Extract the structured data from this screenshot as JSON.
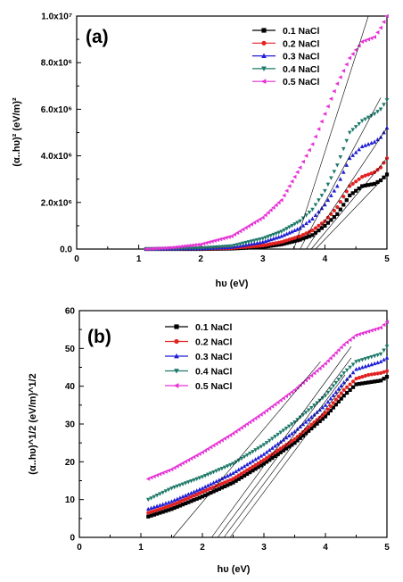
{
  "chart_data": [
    {
      "type": "scatter",
      "panel_label": "(a)",
      "xlabel": "hυ (eV)",
      "ylabel": "(α..hυ)² (eV/m)²",
      "xlim": [
        0,
        5
      ],
      "ylim": [
        0,
        10000000
      ],
      "x_ticks": [
        "0",
        "1",
        "2",
        "3",
        "4",
        "5"
      ],
      "y_ticks": [
        "0.0",
        "2.0x10⁶",
        "4.0x10⁶",
        "6.0x10⁶",
        "8.0x10⁶",
        "1.0x10⁷"
      ],
      "legend_position": "top-right",
      "grid": false,
      "series": [
        {
          "name": "0.1 NaCl",
          "color": "#000000",
          "marker": "square",
          "x": [
            1.12,
            2.0,
            2.5,
            3.0,
            3.3,
            3.6,
            3.8,
            4.0,
            4.2,
            4.4,
            4.6,
            4.8,
            4.9,
            5.0
          ],
          "y": [
            0,
            0,
            20000,
            90000,
            200000,
            400000,
            600000,
            1000000,
            1500000,
            2300000,
            2700000,
            2800000,
            2950000,
            3200000
          ]
        },
        {
          "name": "0.2 NaCl",
          "color": "#e32222",
          "marker": "circle",
          "x": [
            1.12,
            2.0,
            2.5,
            3.0,
            3.3,
            3.6,
            3.8,
            4.0,
            4.2,
            4.4,
            4.6,
            4.8,
            4.9,
            5.0
          ],
          "y": [
            0,
            10000,
            40000,
            150000,
            300000,
            550000,
            800000,
            1200000,
            1800000,
            2700000,
            3100000,
            3300000,
            3500000,
            3900000
          ]
        },
        {
          "name": "0.3 NaCl",
          "color": "#1f1fd6",
          "marker": "triangle-up",
          "x": [
            1.12,
            2.0,
            2.5,
            3.0,
            3.3,
            3.6,
            3.8,
            4.0,
            4.2,
            4.4,
            4.6,
            4.8,
            4.9,
            5.0
          ],
          "y": [
            0,
            20000,
            80000,
            300000,
            550000,
            900000,
            1300000,
            1900000,
            2700000,
            3900000,
            4400000,
            4600000,
            4800000,
            5200000
          ]
        },
        {
          "name": "0.4 NaCl",
          "color": "#1e7a6a",
          "marker": "triangle-down",
          "x": [
            1.12,
            2.0,
            2.5,
            3.0,
            3.3,
            3.6,
            3.8,
            4.0,
            4.2,
            4.4,
            4.6,
            4.8,
            4.9,
            5.0
          ],
          "y": [
            0,
            40000,
            130000,
            450000,
            750000,
            1200000,
            1700000,
            2500000,
            3600000,
            5000000,
            5500000,
            5800000,
            6000000,
            6400000
          ]
        },
        {
          "name": "0.5 NaCl",
          "color": "#e632d6",
          "marker": "triangle-left",
          "x": [
            1.12,
            1.5,
            2.0,
            2.5,
            3.0,
            3.3,
            3.6,
            3.8,
            4.0,
            4.2,
            4.4,
            4.6,
            4.7,
            4.8,
            4.9,
            5.0
          ],
          "y": [
            0,
            50000,
            200000,
            550000,
            1350000,
            2100000,
            3500000,
            4500000,
            5800000,
            7100000,
            8200000,
            8900000,
            9000000,
            9100000,
            9500000,
            10000000
          ]
        }
      ],
      "fit_lines": [
        {
          "x": [
            3.5,
            4.7
          ],
          "y": [
            0,
            10000000
          ]
        },
        {
          "x": [
            3.6,
            4.9
          ],
          "y": [
            0,
            6500000
          ]
        },
        {
          "x": [
            3.7,
            5.0
          ],
          "y": [
            0,
            5200000
          ]
        },
        {
          "x": [
            3.78,
            5.0
          ],
          "y": [
            0,
            3900000
          ]
        },
        {
          "x": [
            3.85,
            5.0
          ],
          "y": [
            0,
            3200000
          ]
        }
      ]
    },
    {
      "type": "scatter",
      "panel_label": "(b)",
      "xlabel": "hυ (eV)",
      "ylabel": "(α..hυ)^1/2 (eV/m)^1/2",
      "xlim": [
        0,
        5
      ],
      "ylim": [
        0,
        60
      ],
      "x_ticks": [
        "0",
        "1",
        "2",
        "3",
        "4",
        "5"
      ],
      "y_ticks": [
        "0",
        "10",
        "20",
        "30",
        "40",
        "50",
        "60"
      ],
      "legend_position": "top-left",
      "grid": false,
      "series": [
        {
          "name": "0.1 NaCl",
          "color": "#000000",
          "marker": "square",
          "x": [
            1.12,
            1.5,
            2.0,
            2.5,
            3.0,
            3.5,
            4.0,
            4.3,
            4.5,
            4.7,
            4.9,
            5.0
          ],
          "y": [
            5.5,
            7.5,
            10.8,
            14.5,
            19.5,
            25,
            32,
            37.5,
            40.5,
            41,
            41.5,
            42.5
          ]
        },
        {
          "name": "0.2 NaCl",
          "color": "#e32222",
          "marker": "circle",
          "x": [
            1.12,
            1.5,
            2.0,
            2.5,
            3.0,
            3.5,
            4.0,
            4.3,
            4.5,
            4.7,
            4.9,
            5.0
          ],
          "y": [
            6.5,
            8.5,
            12,
            15.5,
            20.5,
            26,
            33,
            39,
            42,
            43,
            43.5,
            44
          ]
        },
        {
          "name": "0.3 NaCl",
          "color": "#1f1fd6",
          "marker": "triangle-up",
          "x": [
            1.12,
            1.5,
            2.0,
            2.5,
            3.0,
            3.5,
            4.0,
            4.3,
            4.5,
            4.7,
            4.9,
            5.0
          ],
          "y": [
            7.5,
            9.5,
            13,
            17,
            22,
            28,
            35,
            41,
            44.5,
            45.5,
            46.5,
            47.5
          ]
        },
        {
          "name": "0.4 NaCl",
          "color": "#1e7a6a",
          "marker": "triangle-down",
          "x": [
            1.12,
            1.5,
            2.0,
            2.5,
            3.0,
            3.5,
            4.0,
            4.3,
            4.5,
            4.7,
            4.9,
            5.0
          ],
          "y": [
            10,
            13,
            16,
            19.5,
            24.5,
            30.5,
            37.5,
            43.5,
            46.5,
            47.5,
            48.5,
            50.5
          ]
        },
        {
          "name": "0.5 NaCl",
          "color": "#e632d6",
          "marker": "triangle-left",
          "x": [
            1.12,
            1.5,
            2.0,
            2.5,
            3.0,
            3.5,
            4.0,
            4.3,
            4.5,
            4.7,
            4.9,
            5.0
          ],
          "y": [
            15.5,
            18,
            22.5,
            27.5,
            33,
            39,
            46,
            51,
            53.5,
            54.5,
            55.5,
            57
          ]
        }
      ],
      "fit_lines": [
        {
          "x": [
            1.52,
            3.92
          ],
          "y": [
            0,
            46.5
          ]
        },
        {
          "x": [
            2.15,
            4.42
          ],
          "y": [
            0,
            50.5
          ]
        },
        {
          "x": [
            2.25,
            4.42
          ],
          "y": [
            0,
            47.5
          ]
        },
        {
          "x": [
            2.35,
            4.32
          ],
          "y": [
            0,
            43
          ]
        },
        {
          "x": [
            2.45,
            4.42
          ],
          "y": [
            0,
            43
          ]
        }
      ]
    }
  ]
}
